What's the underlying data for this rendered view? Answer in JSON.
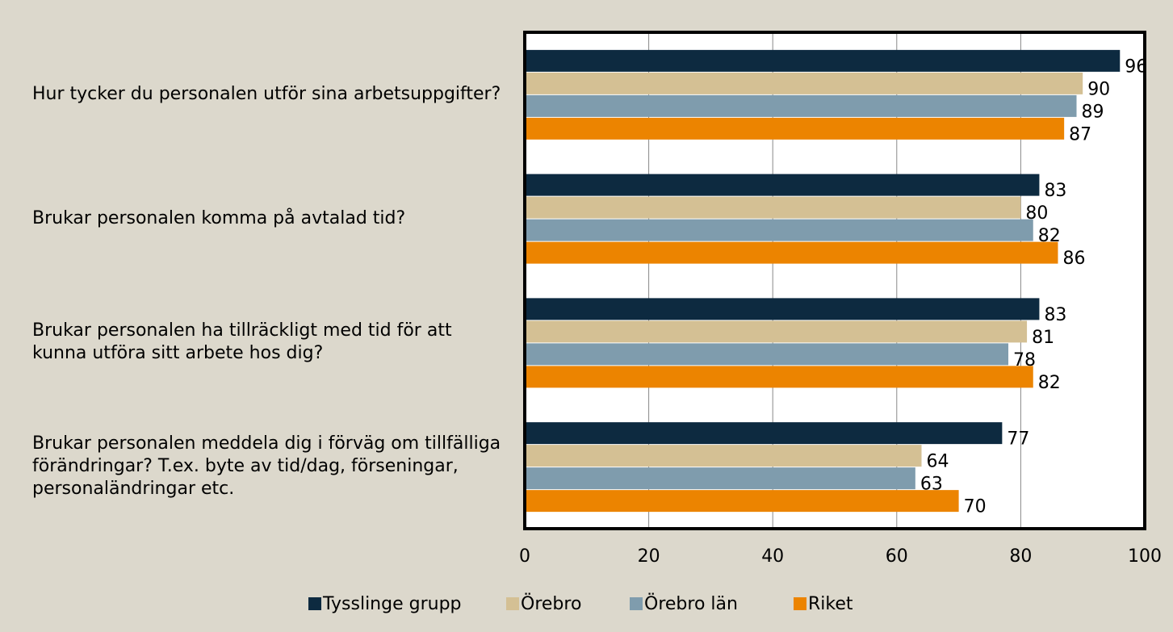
{
  "chart_data": {
    "type": "bar",
    "orientation": "horizontal",
    "categories": [
      "Hur tycker du personalen utför sina arbetsuppgifter?",
      "Brukar personalen komma på avtalad tid?",
      "Brukar personalen ha tillräckligt med tid för att kunna utföra sitt arbete hos dig?",
      "Brukar personalen meddela dig i förväg om tillfälliga förändringar? T.ex. byte av tid/dag, förseningar, personaländringar etc."
    ],
    "series": [
      {
        "name": "Tysslinge grupp",
        "color": "#0d2a40",
        "values": [
          96,
          83,
          83,
          77
        ]
      },
      {
        "name": "Örebro",
        "color": "#d4c094",
        "values": [
          90,
          80,
          81,
          64
        ]
      },
      {
        "name": "Örebro län",
        "color": "#7f9cad",
        "values": [
          89,
          82,
          78,
          63
        ]
      },
      {
        "name": "Riket",
        "color": "#ec8400",
        "values": [
          87,
          86,
          82,
          70
        ]
      }
    ],
    "xlim": [
      0,
      100
    ],
    "xticks": [
      0,
      20,
      40,
      60,
      80,
      100
    ],
    "grid": true,
    "legend": "bottom"
  }
}
